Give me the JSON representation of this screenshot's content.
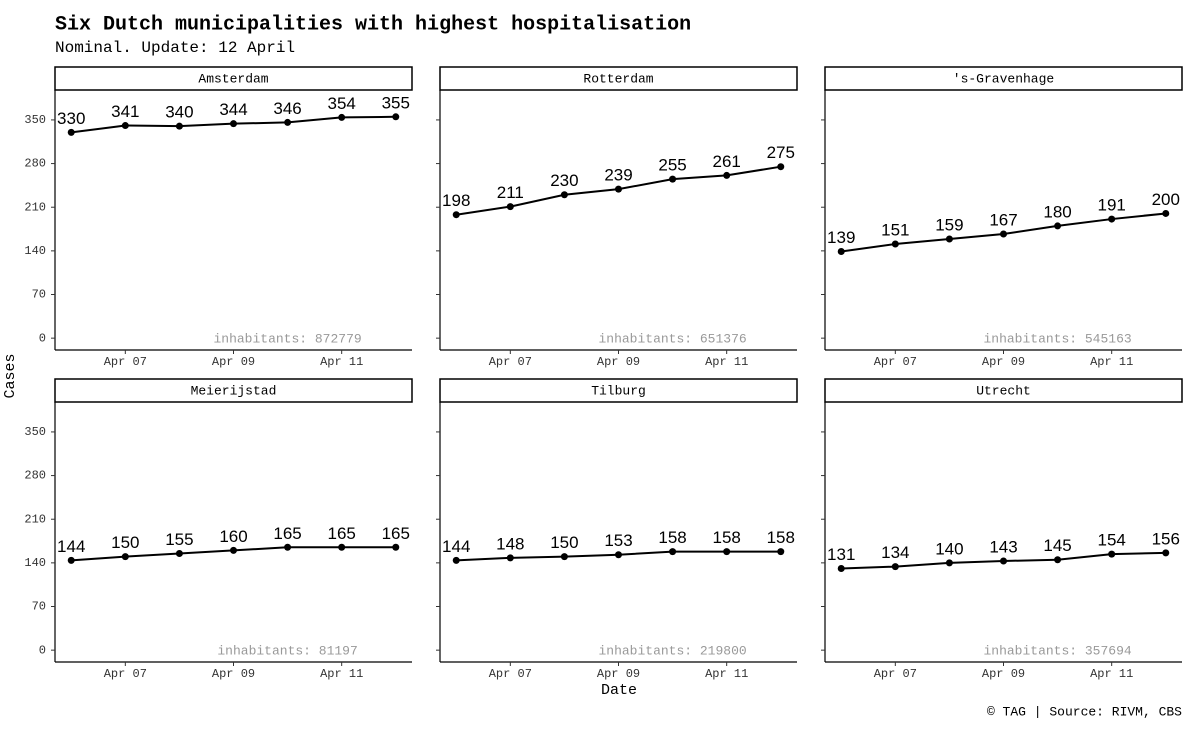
{
  "chart_data": {
    "type": "line",
    "title": "Six Dutch municipalities with highest hospitalisation",
    "subtitle": "Nominal. Update: 12 April",
    "x_label": "Date",
    "y_label": "Cases",
    "caption": "© TAG | Source: RIVM, CBS",
    "color": "#000000",
    "x": [
      6,
      7,
      8,
      9,
      10,
      11,
      12
    ],
    "xlim": [
      5.7,
      12.3
    ],
    "xticks": [
      {
        "value": 7,
        "label": "Apr 07"
      },
      {
        "value": 9,
        "label": "Apr 09"
      },
      {
        "value": 11,
        "label": "Apr 11"
      }
    ],
    "ylim": [
      -19,
      398
    ],
    "yticks": [
      0,
      70,
      140,
      210,
      280,
      350
    ],
    "facets": [
      {
        "title": "Amsterdam",
        "values": [
          330,
          341,
          340,
          344,
          346,
          354,
          355
        ],
        "annotation": "inhabitants: 872779"
      },
      {
        "title": "Rotterdam",
        "values": [
          198,
          211,
          230,
          239,
          255,
          261,
          275
        ],
        "annotation": "inhabitants: 651376"
      },
      {
        "title": "'s-Gravenhage",
        "values": [
          139,
          151,
          159,
          167,
          180,
          191,
          200
        ],
        "annotation": "inhabitants: 545163"
      },
      {
        "title": "Meierijstad",
        "values": [
          144,
          150,
          155,
          160,
          165,
          165,
          165
        ],
        "annotation": "inhabitants: 81197"
      },
      {
        "title": "Tilburg",
        "values": [
          144,
          148,
          150,
          153,
          158,
          158,
          158
        ],
        "annotation": "inhabitants: 219800"
      },
      {
        "title": "Utrecht",
        "values": [
          131,
          134,
          140,
          143,
          145,
          154,
          156
        ],
        "annotation": "inhabitants: 357694"
      }
    ]
  }
}
